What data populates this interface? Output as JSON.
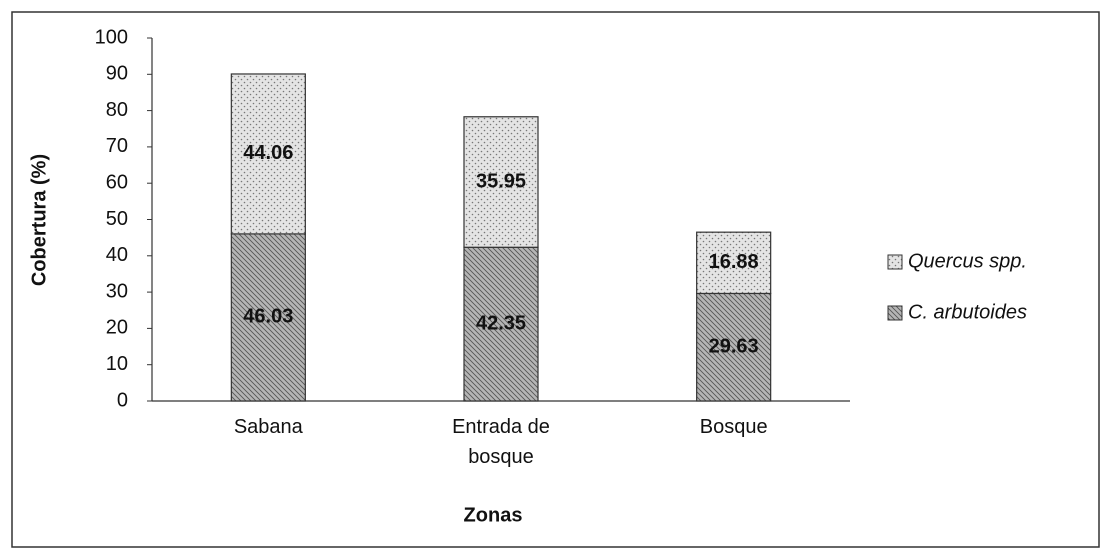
{
  "chart_data": {
    "type": "stacked_bar",
    "ylabel": "Cobertura (%)",
    "xlabel": "Zonas",
    "categories": [
      "Sabana",
      "Entrada de bosque",
      "Bosque"
    ],
    "series": [
      {
        "name": "C. arbutoides",
        "color": "#b5b5b5",
        "values": [
          46.03,
          42.35,
          29.63
        ]
      },
      {
        "name": "Quercus spp.",
        "color": "#e4e4e4",
        "values": [
          44.06,
          35.95,
          16.88
        ]
      }
    ],
    "ylim": [
      0,
      100
    ],
    "yticks": [
      0,
      10,
      20,
      30,
      40,
      50,
      60,
      70,
      80,
      90,
      100
    ],
    "legend": "right"
  }
}
